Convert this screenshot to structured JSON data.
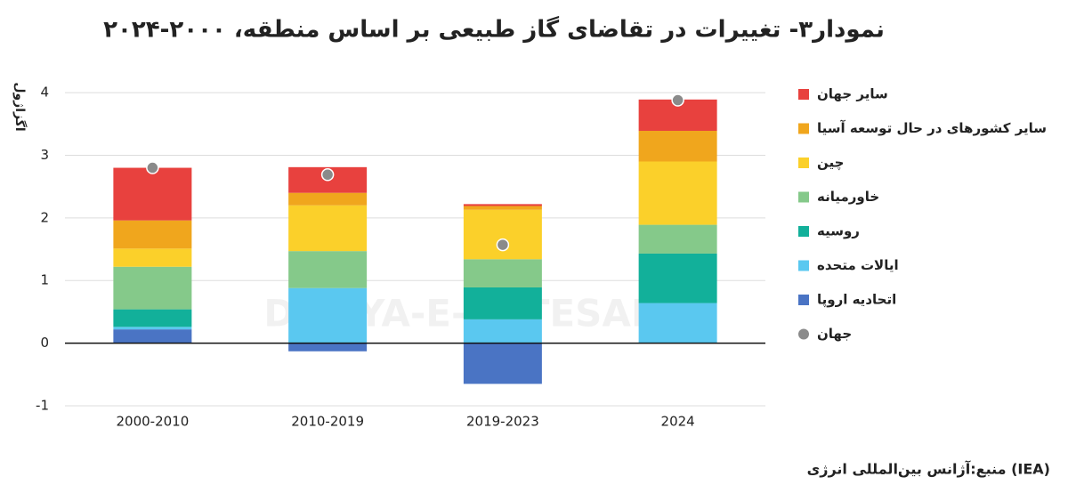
{
  "chart_data": {
    "type": "bar",
    "stacked": true,
    "title": "نمودار۳- تغییرات در تقاضای گاز طبیعی بر اساس منطقه، ۲۰۰۰-۲۰۲۴",
    "y_label": "اگزاژول",
    "source": "منبع:آژانس بین‌المللی انرژی (IEA)",
    "watermark": "DONYA-E-EQTESAD",
    "categories": [
      "2000-2010",
      "2010-2019",
      "2019-2023",
      "2024"
    ],
    "series": [
      {
        "name": "اتحادیه اروپا",
        "color": "#4a74c4",
        "values": [
          0.22,
          -0.13,
          -0.65,
          0
        ]
      },
      {
        "name": "ایالات متحده",
        "color": "#5ac8f0",
        "values": [
          0.04,
          0.88,
          0.38,
          0.64
        ]
      },
      {
        "name": "روسیه",
        "color": "#12b09a",
        "values": [
          0.28,
          0,
          0.51,
          0.79
        ]
      },
      {
        "name": "خاورمیانه",
        "color": "#85c98a",
        "values": [
          0.68,
          0.59,
          0.45,
          0.46
        ]
      },
      {
        "name": "چین",
        "color": "#fbd02a",
        "values": [
          0.29,
          0.73,
          0.79,
          1.01
        ]
      },
      {
        "name": "سایر کشورهای در حال توسعه آسیا",
        "color": "#f0a61d",
        "values": [
          0.45,
          0.2,
          0.06,
          0.49
        ]
      },
      {
        "name": "سایر جهان",
        "color": "#e8413e",
        "values": [
          0.84,
          0.41,
          0.03,
          0.5
        ]
      },
      {
        "name": "جهان",
        "color": "#8a8a8a",
        "marker": "dot",
        "values": [
          2.8,
          2.69,
          1.57,
          3.88
        ]
      }
    ],
    "ylim": [
      -1,
      4.2
    ],
    "yticks": [
      -1,
      0,
      1,
      2,
      3,
      4
    ],
    "grid": true,
    "legend": "right"
  }
}
